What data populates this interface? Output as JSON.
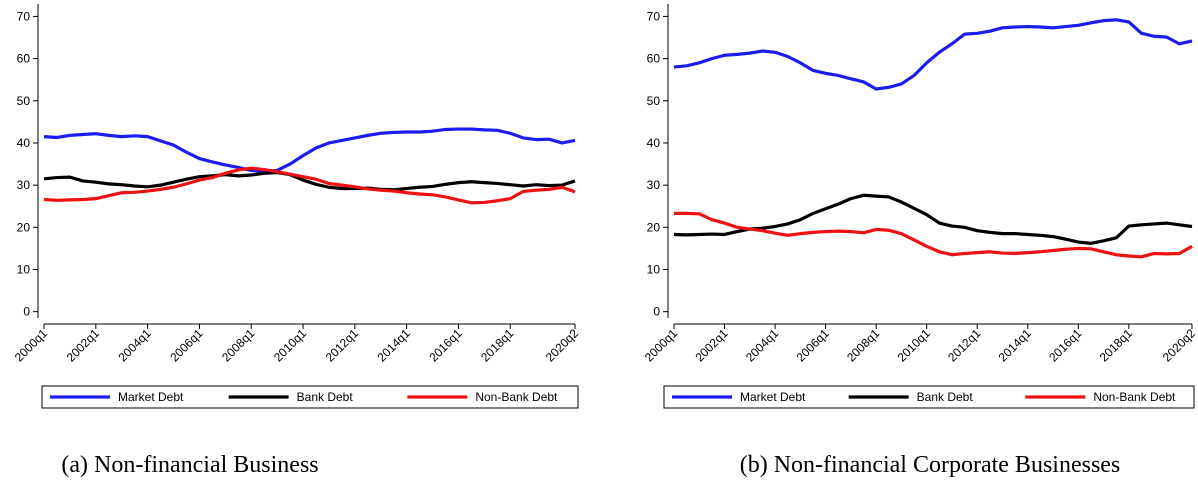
{
  "chart_data": [
    {
      "type": "line",
      "caption": "(a) Non-financial Business",
      "categories": [
        "2000q1",
        null,
        null,
        null,
        "2002q1",
        null,
        null,
        null,
        "2004q1",
        null,
        null,
        null,
        "2006q1",
        null,
        null,
        null,
        "2008q1",
        null,
        null,
        null,
        "2010q1",
        null,
        null,
        null,
        "2012q1",
        null,
        null,
        null,
        "2014q1",
        null,
        null,
        null,
        "2016q1",
        null,
        null,
        null,
        "2018q1",
        null,
        null,
        null,
        null,
        "2020q2"
      ],
      "ylim": [
        -1.5,
        72
      ],
      "yticks": [
        0,
        10,
        20,
        30,
        40,
        50,
        60,
        70
      ],
      "grid": false,
      "series": [
        {
          "name": "Market Debt",
          "color": "#1c1cf0",
          "values": [
            41.5,
            41.3,
            41.8,
            42,
            42.2,
            41.8,
            41.5,
            41.7,
            41.5,
            40.5,
            39.5,
            37.8,
            36.3,
            35.5,
            34.8,
            34.2,
            33.5,
            33.2,
            33.5,
            35,
            37,
            38.8,
            40,
            40.6,
            41.2,
            41.8,
            42.3,
            42.5,
            42.6,
            42.6,
            42.8,
            43.2,
            43.3,
            43.3,
            43.1,
            43,
            42.3,
            41.2,
            40.8,
            40.9,
            40,
            40.6
          ]
        },
        {
          "name": "Bank Debt",
          "color": "#000000",
          "values": [
            31.5,
            31.8,
            31.9,
            31,
            30.7,
            30.3,
            30.1,
            29.8,
            29.6,
            30,
            30.7,
            31.4,
            32,
            32.2,
            32.5,
            32.2,
            32.4,
            32.8,
            33,
            32.5,
            31.2,
            30.2,
            29.5,
            29.2,
            29.2,
            29.3,
            29,
            28.9,
            29.2,
            29.5,
            29.7,
            30.2,
            30.6,
            30.8,
            30.6,
            30.4,
            30.1,
            29.8,
            30.1,
            29.9,
            30,
            31
          ]
        },
        {
          "name": "Non-Bank Debt",
          "color": "#ee1111",
          "values": [
            26.6,
            26.4,
            26.5,
            26.6,
            26.8,
            27.5,
            28.2,
            28.3,
            28.6,
            29,
            29.5,
            30.3,
            31.2,
            31.8,
            32.8,
            33.6,
            34,
            33.7,
            33.2,
            32.6,
            32,
            31.4,
            30.4,
            30,
            29.6,
            29.1,
            28.8,
            28.6,
            28.2,
            27.9,
            27.7,
            27.2,
            26.5,
            25.8,
            25.9,
            26.3,
            26.8,
            28.5,
            28.8,
            29,
            29.5,
            28.4
          ]
        }
      ]
    },
    {
      "type": "line",
      "caption": "(b) Non-financial Corporate Businesses",
      "categories": [
        "2000q1",
        null,
        null,
        null,
        "2002q1",
        null,
        null,
        null,
        "2004q1",
        null,
        null,
        null,
        "2006q1",
        null,
        null,
        null,
        "2008q1",
        null,
        null,
        null,
        "2010q1",
        null,
        null,
        null,
        "2012q1",
        null,
        null,
        null,
        "2014q1",
        null,
        null,
        null,
        "2016q1",
        null,
        null,
        null,
        "2018q1",
        null,
        null,
        null,
        null,
        "2020q2"
      ],
      "ylim": [
        -1.5,
        72
      ],
      "yticks": [
        0,
        10,
        20,
        30,
        40,
        50,
        60,
        70
      ],
      "grid": false,
      "series": [
        {
          "name": "Market Debt",
          "color": "#1c1cf0",
          "values": [
            58,
            58.3,
            59,
            60,
            60.8,
            61,
            61.3,
            61.8,
            61.5,
            60.5,
            59,
            57.2,
            56.5,
            56,
            55.2,
            54.5,
            52.8,
            53.2,
            54,
            56,
            59,
            61.5,
            63.5,
            65.8,
            66,
            66.5,
            67.3,
            67.5,
            67.6,
            67.5,
            67.3,
            67.6,
            67.9,
            68.5,
            69,
            69.2,
            68.7,
            66,
            65.3,
            65.1,
            63.5,
            64.2
          ]
        },
        {
          "name": "Bank Debt",
          "color": "#000000",
          "values": [
            18.3,
            18.2,
            18.3,
            18.4,
            18.3,
            19,
            19.6,
            19.8,
            20.2,
            20.8,
            21.8,
            23.3,
            24.4,
            25.5,
            26.8,
            27.6,
            27.4,
            27.2,
            26,
            24.5,
            23,
            21,
            20.3,
            20,
            19.2,
            18.8,
            18.5,
            18.5,
            18.3,
            18.1,
            17.8,
            17.2,
            16.5,
            16.2,
            16.8,
            17.5,
            20.3,
            20.6,
            20.8,
            21,
            20.6,
            20.2
          ]
        },
        {
          "name": "Non-Bank Debt",
          "color": "#ee1111",
          "values": [
            23.3,
            23.3,
            23.2,
            21.8,
            21,
            20,
            19.6,
            19.2,
            18.6,
            18.1,
            18.5,
            18.8,
            19,
            19.1,
            19,
            18.7,
            19.5,
            19.3,
            18.5,
            17,
            15.5,
            14.2,
            13.5,
            13.8,
            14,
            14.2,
            13.9,
            13.8,
            14,
            14.2,
            14.5,
            14.8,
            15,
            14.9,
            14.2,
            13.5,
            13.2,
            13,
            13.8,
            13.7,
            13.8,
            15.5
          ]
        }
      ]
    }
  ]
}
